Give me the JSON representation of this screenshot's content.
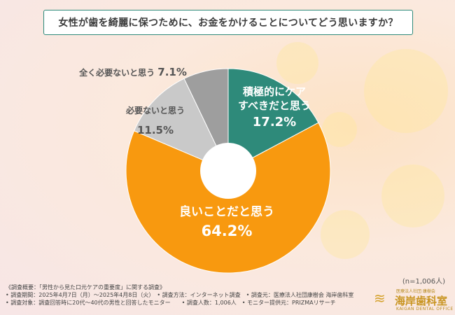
{
  "title": "女性が歯を綺麗に保つために、お金をかけることについてどう思いますか？",
  "n_label": "(n=1,006人)",
  "colors": {
    "teal": "#2e8a7a",
    "orange": "#f8990f",
    "lightgray": "#c9c9c9",
    "darkgray": "#9e9e9e"
  },
  "chart_data": {
    "type": "pie",
    "title": "女性が歯を綺麗に保つために、お金をかけることについてどう思いますか？",
    "donut": true,
    "slices": [
      {
        "label": "積極的にケアすべきだと思う",
        "label_lines": [
          "積極的にケア",
          "すべきだと思う"
        ],
        "value": 17.2,
        "value_text": "17.2%",
        "color": "#2e8a7a"
      },
      {
        "label": "良いことだと思う",
        "label_lines": [
          "良いことだと思う"
        ],
        "value": 64.2,
        "value_text": "64.2%",
        "color": "#f8990f"
      },
      {
        "label": "必要ないと思う",
        "label_lines": [
          "必要ないと思う"
        ],
        "value": 11.5,
        "value_text": "11.5%",
        "color": "#c9c9c9"
      },
      {
        "label": "全く必要ないと思う",
        "label_lines": [
          "全く必要ないと思う"
        ],
        "value": 7.1,
        "value_text": "7.1%",
        "color": "#9e9e9e"
      }
    ]
  },
  "footer": {
    "lines": [
      "《調査概要：「男性から見た口元ケアの重要度」に関する調査》",
      "• 調査期間：2025年4月7日（月）～2025年4月8日（火）　• 調査方法：インターネット調査　• 調査元：医療法人社団康樹会 海岸歯科室",
      "• 調査対象：調査回答時に20代～40代の男性と回答したモニター　　• 調査人数：1,006人　• モニター提供元：PRIZMAリサーチ"
    ]
  },
  "logo": {
    "sub": "医療法人社団 康樹会",
    "main": "海岸歯科室",
    "en": "KAIGAN DENTAL OFFICE"
  }
}
